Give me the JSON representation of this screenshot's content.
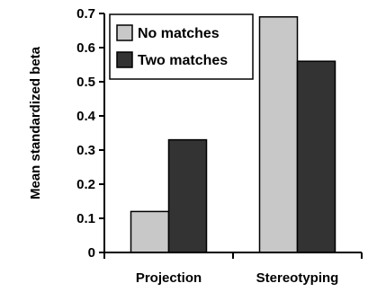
{
  "chart_data": {
    "type": "bar",
    "title": "",
    "xlabel": "",
    "ylabel": "Mean standardized beta",
    "ylim": [
      0,
      0.7
    ],
    "yticks": [
      0,
      0.1,
      0.2,
      0.3,
      0.4,
      0.5,
      0.6,
      0.7
    ],
    "ytick_labels": [
      "0",
      "0.1",
      "0.2",
      "0.3",
      "0.4",
      "0.5",
      "0.6",
      "0.7"
    ],
    "categories": [
      "Projection",
      "Stereotyping"
    ],
    "series": [
      {
        "name": "No matches",
        "values": [
          0.12,
          0.69
        ],
        "color": "#c8c8c8"
      },
      {
        "name": "Two matches",
        "values": [
          0.33,
          0.56
        ],
        "color": "#333333"
      }
    ],
    "legend": {
      "position": "top-left"
    },
    "grid": false
  }
}
